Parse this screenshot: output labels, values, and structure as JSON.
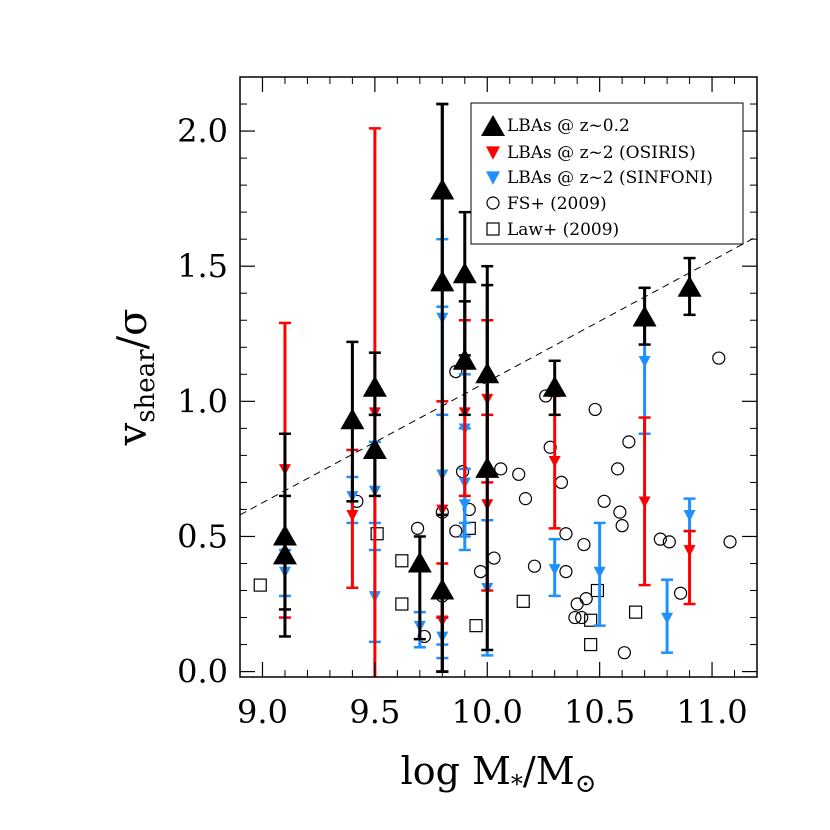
{
  "chart_data": {
    "type": "scatter",
    "xlim": [
      8.9,
      11.2
    ],
    "ylim": [
      -0.02,
      2.2
    ],
    "x_ticks": [
      "9.0",
      "9.5",
      "10.0",
      "10.5",
      "11.0"
    ],
    "y_ticks": [
      "0.0",
      "0.5",
      "1.0",
      "1.5",
      "2.0"
    ],
    "xlabel": {
      "prefix": "log M",
      "sub1": "*",
      "mid": "/M",
      "sub2": "⊙"
    },
    "ylabel": {
      "main": "v",
      "sub": "shear",
      "tail": "/σ"
    },
    "legend_position": "top-right",
    "grid": false,
    "reference_line": {
      "style": "dashed",
      "from": [
        8.9,
        0.58
      ],
      "to": [
        11.2,
        1.61
      ]
    },
    "series": [
      {
        "key": "lba_z02",
        "name": "LBAs @ z~0.2",
        "marker": "triangle-up",
        "color": "#000000",
        "points": [
          {
            "x": 9.1,
            "y": 0.5,
            "lo": 0.23,
            "hi": 0.88
          },
          {
            "x": 9.1,
            "y": 0.43,
            "lo": 0.13,
            "hi": 0.65
          },
          {
            "x": 9.4,
            "y": 0.93,
            "lo": 0.63,
            "hi": 1.22
          },
          {
            "x": 9.5,
            "y": 1.05,
            "lo": 0.95,
            "hi": 1.18
          },
          {
            "x": 9.5,
            "y": 0.82,
            "lo": 0.65,
            "hi": 0.95
          },
          {
            "x": 9.7,
            "y": 0.4,
            "lo": 0.12,
            "hi": 0.5
          },
          {
            "x": 9.8,
            "y": 1.78,
            "lo": 1.42,
            "hi": 2.1
          },
          {
            "x": 9.8,
            "y": 1.44,
            "lo": 0.0,
            "hi": 2.1
          },
          {
            "x": 9.8,
            "y": 0.3,
            "lo": 0.0,
            "hi": 0.58
          },
          {
            "x": 9.9,
            "y": 1.47,
            "lo": 1.17,
            "hi": 1.7
          },
          {
            "x": 9.9,
            "y": 1.15,
            "lo": 0.95,
            "hi": 1.37
          },
          {
            "x": 10.0,
            "y": 1.1,
            "lo": 0.73,
            "hi": 1.5
          },
          {
            "x": 10.0,
            "y": 0.75,
            "lo": 0.08,
            "hi": 1.43
          },
          {
            "x": 10.3,
            "y": 1.05,
            "lo": 0.95,
            "hi": 1.15
          },
          {
            "x": 10.7,
            "y": 1.31,
            "lo": 1.21,
            "hi": 1.42
          },
          {
            "x": 10.9,
            "y": 1.42,
            "lo": 1.32,
            "hi": 1.53
          }
        ]
      },
      {
        "key": "lba_osiris",
        "name": "LBAs @ z~2 (OSIRIS)",
        "marker": "triangle-down",
        "color": "#ff0000",
        "points": [
          {
            "x": 9.1,
            "y": 0.75,
            "lo": 0.2,
            "hi": 1.29
          },
          {
            "x": 9.4,
            "y": 0.58,
            "lo": 0.31,
            "hi": 0.82
          },
          {
            "x": 9.5,
            "y": 0.96,
            "lo": -0.1,
            "hi": 2.01
          },
          {
            "x": 9.8,
            "y": 0.6,
            "lo": 0.2,
            "hi": 1.0
          },
          {
            "x": 9.8,
            "y": 0.19,
            "lo": 0.0,
            "hi": 0.4
          },
          {
            "x": 9.9,
            "y": 0.96,
            "lo": 0.65,
            "hi": 1.3
          },
          {
            "x": 10.0,
            "y": 1.01,
            "lo": 0.7,
            "hi": 1.3
          },
          {
            "x": 10.0,
            "y": 0.62,
            "lo": 0.3,
            "hi": 0.95
          },
          {
            "x": 10.3,
            "y": 0.78,
            "lo": 0.53,
            "hi": 1.02
          },
          {
            "x": 10.7,
            "y": 0.63,
            "lo": 0.32,
            "hi": 0.94
          },
          {
            "x": 10.9,
            "y": 0.45,
            "lo": 0.25,
            "hi": 0.52
          }
        ]
      },
      {
        "key": "lba_sinfoni",
        "name": "LBAs @ z~2 (SINFONI)",
        "marker": "triangle-down",
        "color": "#1e90ff",
        "points": [
          {
            "x": 9.1,
            "y": 0.37,
            "lo": 0.28,
            "hi": 0.45
          },
          {
            "x": 9.4,
            "y": 0.65,
            "lo": 0.55,
            "hi": 0.72
          },
          {
            "x": 9.5,
            "y": 0.67,
            "lo": 0.55,
            "hi": 0.85
          },
          {
            "x": 9.5,
            "y": 0.28,
            "lo": 0.11,
            "hi": 0.45
          },
          {
            "x": 9.7,
            "y": 0.17,
            "lo": 0.09,
            "hi": 0.22
          },
          {
            "x": 9.8,
            "y": 1.31,
            "lo": 0.95,
            "hi": 1.6
          },
          {
            "x": 9.8,
            "y": 0.73,
            "lo": 0.1,
            "hi": 1.35
          },
          {
            "x": 9.8,
            "y": 0.13,
            "lo": 0.05,
            "hi": 0.2
          },
          {
            "x": 9.9,
            "y": 0.9,
            "lo": 0.55,
            "hi": 1.1
          },
          {
            "x": 9.9,
            "y": 0.7,
            "lo": 0.5,
            "hi": 0.9
          },
          {
            "x": 9.9,
            "y": 0.62,
            "lo": 0.45,
            "hi": 0.75
          },
          {
            "x": 10.0,
            "y": 0.31,
            "lo": 0.06,
            "hi": 0.56
          },
          {
            "x": 10.3,
            "y": 0.38,
            "lo": 0.28,
            "hi": 0.49
          },
          {
            "x": 10.5,
            "y": 0.37,
            "lo": 0.17,
            "hi": 0.55
          },
          {
            "x": 10.7,
            "y": 1.15,
            "lo": 0.88,
            "hi": 1.42
          },
          {
            "x": 10.8,
            "y": 0.2,
            "lo": 0.07,
            "hi": 0.34
          },
          {
            "x": 10.9,
            "y": 0.58,
            "lo": 0.52,
            "hi": 0.64
          }
        ]
      },
      {
        "key": "fs2009",
        "name": "FS+ (2009)",
        "marker": "circle",
        "color": "#000000",
        "points": [
          {
            "x": 9.42,
            "y": 0.63
          },
          {
            "x": 9.69,
            "y": 0.53
          },
          {
            "x": 9.72,
            "y": 0.13
          },
          {
            "x": 9.8,
            "y": 0.59
          },
          {
            "x": 9.8,
            "y": 0.28
          },
          {
            "x": 9.86,
            "y": 1.11
          },
          {
            "x": 9.86,
            "y": 0.52
          },
          {
            "x": 9.89,
            "y": 0.74
          },
          {
            "x": 9.92,
            "y": 0.6
          },
          {
            "x": 9.97,
            "y": 0.37
          },
          {
            "x": 10.03,
            "y": 0.42
          },
          {
            "x": 10.06,
            "y": 0.75
          },
          {
            "x": 10.14,
            "y": 0.73
          },
          {
            "x": 10.17,
            "y": 0.64
          },
          {
            "x": 10.21,
            "y": 0.39
          },
          {
            "x": 10.26,
            "y": 1.02
          },
          {
            "x": 10.28,
            "y": 0.83
          },
          {
            "x": 10.33,
            "y": 0.7
          },
          {
            "x": 10.35,
            "y": 0.51
          },
          {
            "x": 10.35,
            "y": 0.37
          },
          {
            "x": 10.39,
            "y": 0.2
          },
          {
            "x": 10.4,
            "y": 0.25
          },
          {
            "x": 10.42,
            "y": 0.2
          },
          {
            "x": 10.43,
            "y": 0.47
          },
          {
            "x": 10.44,
            "y": 0.27
          },
          {
            "x": 10.48,
            "y": 0.97
          },
          {
            "x": 10.52,
            "y": 0.63
          },
          {
            "x": 10.58,
            "y": 0.75
          },
          {
            "x": 10.59,
            "y": 0.59
          },
          {
            "x": 10.6,
            "y": 0.54
          },
          {
            "x": 10.61,
            "y": 0.07
          },
          {
            "x": 10.63,
            "y": 0.85
          },
          {
            "x": 10.77,
            "y": 0.49
          },
          {
            "x": 10.81,
            "y": 0.48
          },
          {
            "x": 10.86,
            "y": 0.29
          },
          {
            "x": 11.03,
            "y": 1.16
          },
          {
            "x": 11.08,
            "y": 0.48
          }
        ]
      },
      {
        "key": "law2009",
        "name": "Law+ (2009)",
        "marker": "square",
        "color": "#000000",
        "points": [
          {
            "x": 8.99,
            "y": 0.32
          },
          {
            "x": 9.51,
            "y": 0.51
          },
          {
            "x": 9.62,
            "y": 0.41
          },
          {
            "x": 9.62,
            "y": 0.25
          },
          {
            "x": 9.92,
            "y": 0.53
          },
          {
            "x": 9.95,
            "y": 0.17
          },
          {
            "x": 10.16,
            "y": 0.26
          },
          {
            "x": 10.46,
            "y": 0.19
          },
          {
            "x": 10.46,
            "y": 0.1
          },
          {
            "x": 10.49,
            "y": 0.3
          },
          {
            "x": 10.66,
            "y": 0.22
          }
        ]
      }
    ]
  }
}
